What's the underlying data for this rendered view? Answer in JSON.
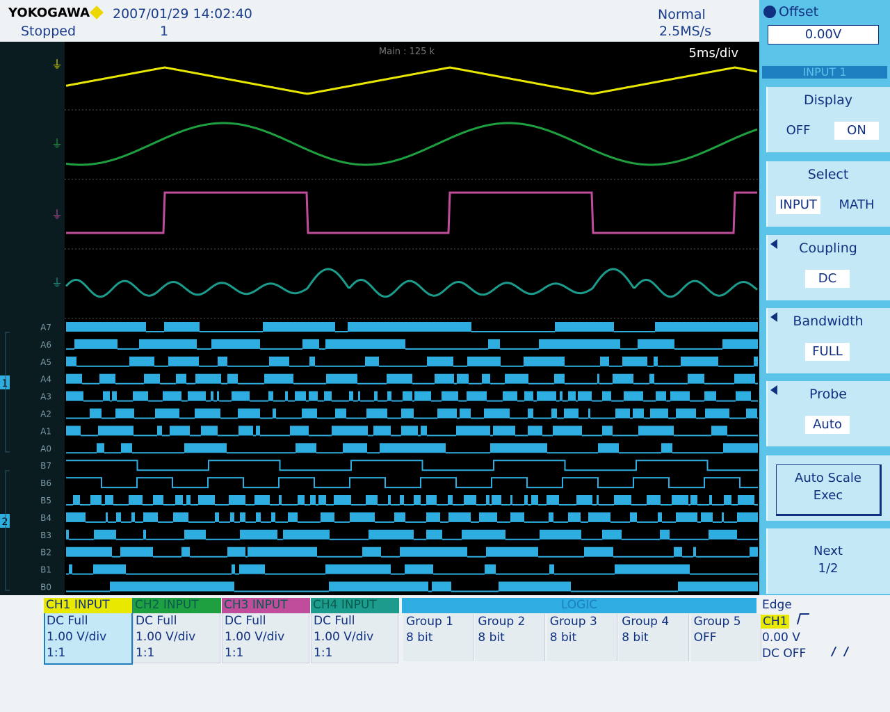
{
  "header": {
    "brand": "YOKOGAWA",
    "datetime": "2007/01/29 14:02:40",
    "status": "Stopped",
    "acq_count": "1",
    "trigger_mode": "Normal",
    "sample_rate": "2.5MS/s"
  },
  "screen": {
    "record": "Main : 125 k",
    "timebase": "5ms/div",
    "logic_labels": [
      "A7",
      "A6",
      "A5",
      "A4",
      "A3",
      "A2",
      "A1",
      "A0",
      "B7",
      "B6",
      "B5",
      "B4",
      "B3",
      "B2",
      "B1",
      "B0"
    ],
    "group_markers": [
      "1",
      "2"
    ]
  },
  "side_menu": {
    "offset_label": "Offset",
    "offset_value": "0.00V",
    "tab": "INPUT 1",
    "buttons": [
      {
        "title": "Display",
        "options": [
          "OFF",
          "ON"
        ],
        "selected": 1
      },
      {
        "title": "Select",
        "options": [
          "INPUT",
          "MATH"
        ],
        "selected": 0
      },
      {
        "title": "Coupling",
        "options": [
          "DC"
        ],
        "selected": 0,
        "submenu": true
      },
      {
        "title": "Bandwidth",
        "options": [
          "FULL"
        ],
        "selected": 0,
        "submenu": true
      },
      {
        "title": "Probe",
        "options": [
          "Auto"
        ],
        "selected": 0,
        "submenu": true
      },
      {
        "lines": [
          "Auto Scale",
          "Exec"
        ]
      },
      {
        "lines": [
          "Next",
          "1/2"
        ]
      }
    ]
  },
  "channels": [
    {
      "title": "CH1 INPUT",
      "color": "#e8e800",
      "lines": [
        "DC Full",
        "1.00 V/div",
        "1:1"
      ]
    },
    {
      "title": "CH2 INPUT",
      "color": "#1fa040",
      "lines": [
        "DC Full",
        "1.00 V/div",
        "1:1"
      ]
    },
    {
      "title": "CH3 INPUT",
      "color": "#c04c9c",
      "lines": [
        "DC Full",
        "1.00 V/div",
        "1:1"
      ]
    },
    {
      "title": "CH4 INPUT",
      "color": "#1c9c8c",
      "lines": [
        "DC Full",
        "1.00 V/div",
        "1:1"
      ]
    }
  ],
  "logic": {
    "title": "LOGIC",
    "groups": [
      {
        "name": "Group 1",
        "bits": "8 bit"
      },
      {
        "name": "Group 2",
        "bits": "8 bit"
      },
      {
        "name": "Group 3",
        "bits": "8 bit"
      },
      {
        "name": "Group 4",
        "bits": "8 bit"
      },
      {
        "name": "Group 5",
        "bits": "OFF"
      }
    ]
  },
  "trigger": {
    "title": "Edge",
    "source": "CH1",
    "level": "0.00 V",
    "coupling": "DC OFF"
  }
}
